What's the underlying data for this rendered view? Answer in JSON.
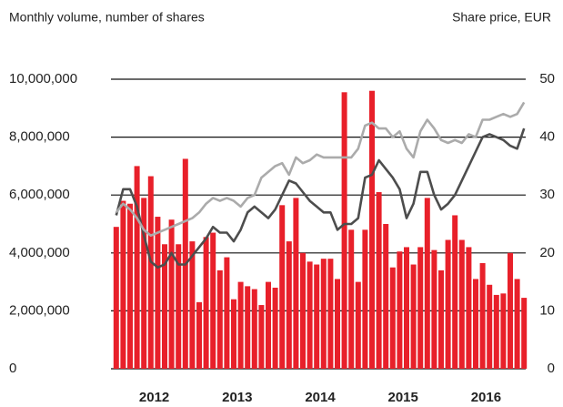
{
  "chart_data": {
    "type": "bar",
    "title": "Monthly volume, number of shares",
    "y2_title": "Share price, EUR",
    "categories": [
      null,
      null,
      null,
      null,
      null,
      "2012",
      null,
      null,
      null,
      null,
      null,
      null,
      null,
      null,
      null,
      null,
      null,
      "2013",
      null,
      null,
      null,
      null,
      null,
      null,
      null,
      null,
      null,
      null,
      null,
      "2014",
      null,
      null,
      null,
      null,
      null,
      null,
      null,
      null,
      null,
      null,
      null,
      "2015",
      null,
      null,
      null,
      null,
      null,
      null,
      null,
      null,
      null,
      null,
      null,
      "2016",
      null,
      null,
      null,
      null,
      null,
      null
    ],
    "series": [
      {
        "type": "bar",
        "color": "#e8202a",
        "values": [
          4900000,
          5800000,
          5700000,
          7000000,
          5900000,
          6650000,
          5250000,
          4300000,
          5150000,
          4300000,
          7250000,
          4400000,
          2300000,
          4550000,
          4700000,
          3400000,
          3850000,
          2400000,
          3000000,
          2850000,
          2750000,
          2200000,
          3000000,
          2800000,
          5650000,
          4400000,
          5900000,
          4000000,
          3700000,
          3600000,
          3800000,
          3800000,
          3100000,
          9550000,
          4800000,
          3000000,
          4800000,
          9600000,
          6100000,
          5000000,
          3500000,
          4050000,
          4200000,
          3600000,
          4200000,
          5900000,
          4100000,
          3400000,
          4450000,
          5300000,
          4450000,
          4200000,
          3100000,
          3650000,
          2900000,
          2550000,
          2600000,
          4000000,
          3100000,
          2450000
        ]
      },
      {
        "type": "line",
        "axis": "y2",
        "color": "#4d4d4d",
        "values": [
          26.5,
          31,
          31,
          28,
          23,
          18.5,
          17.5,
          18,
          20,
          18,
          18,
          19.5,
          21,
          22.5,
          24.5,
          23.5,
          23.5,
          22,
          24,
          27,
          28,
          27,
          26,
          27.5,
          30,
          32.5,
          32,
          30.5,
          29,
          28,
          27,
          27,
          24,
          25,
          25,
          26,
          33,
          33.5,
          36,
          34.5,
          33,
          31,
          26,
          28.5,
          34,
          34,
          30,
          27.5,
          28.5,
          30,
          32.5,
          35,
          37.5,
          40,
          40.5,
          40,
          39.5,
          38.5,
          38,
          41.5
        ]
      },
      {
        "type": "line",
        "axis": "y2",
        "color": "#ababab",
        "values": [
          27,
          28.5,
          27.5,
          26,
          24,
          23,
          23.5,
          24,
          24.5,
          25,
          25.5,
          26,
          27,
          28.5,
          29.5,
          29,
          29.5,
          29,
          28,
          29.5,
          30,
          33,
          34,
          35,
          35.5,
          33.5,
          36.5,
          35.5,
          36,
          37,
          36.5,
          36.5,
          36.5,
          36.5,
          36.5,
          38,
          42,
          42.5,
          41.5,
          41.5,
          40,
          41,
          38,
          36.5,
          41,
          43,
          41.5,
          39.5,
          39,
          39.5,
          39,
          40.5,
          40,
          43,
          43,
          43.5,
          44,
          43.5,
          44,
          46
        ]
      }
    ],
    "ylim": [
      0,
      10000000
    ],
    "yticks": [
      0,
      {
        "value": 2000000,
        "label": "2,000,000"
      },
      {
        "value": 4000000,
        "label": "4,000,000"
      },
      {
        "value": 6000000,
        "label": "6,000,000"
      },
      {
        "value": 8000000,
        "label": "8,000,000"
      },
      {
        "value": 10000000,
        "label": "10,000,000"
      }
    ],
    "y2lim": [
      0,
      50
    ],
    "y2ticks": [
      0,
      10,
      20,
      30,
      40,
      50
    ],
    "grid": true
  }
}
